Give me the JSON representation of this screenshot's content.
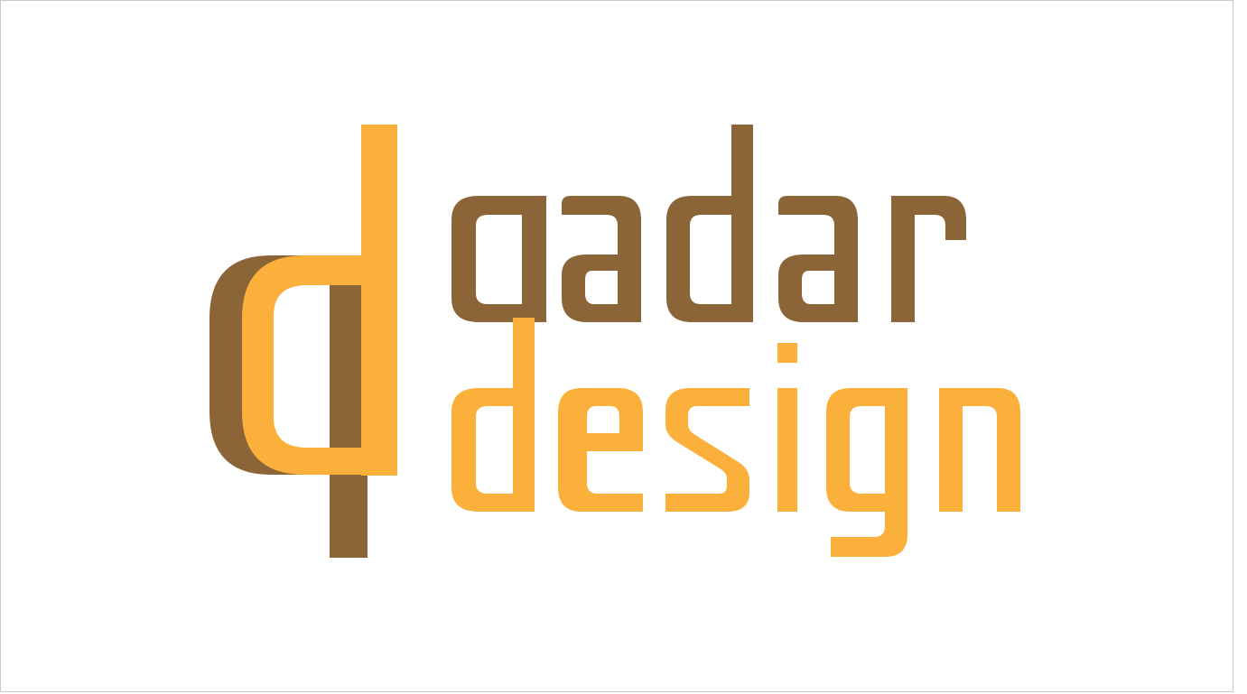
{
  "logo": {
    "wordmark_line_1": "qadar",
    "wordmark_line_2": "design",
    "colors": {
      "brown": "#8B6437",
      "orange": "#FBB03B",
      "background": "#ffffff",
      "border": "#c9c9c9"
    }
  }
}
